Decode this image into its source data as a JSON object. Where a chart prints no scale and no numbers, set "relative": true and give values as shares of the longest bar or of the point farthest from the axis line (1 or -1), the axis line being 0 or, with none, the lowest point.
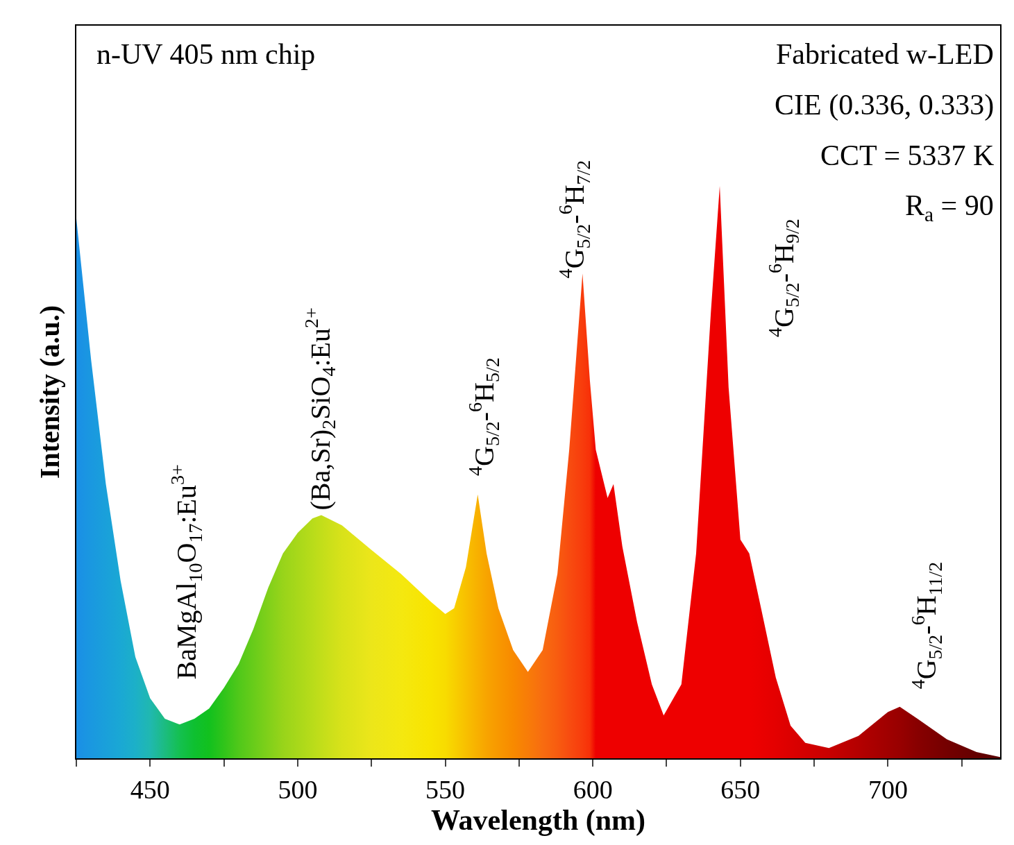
{
  "chart_data": {
    "type": "area",
    "relative": true,
    "xlabel": "Wavelength (nm)",
    "ylabel": "Intensity (a.u.)",
    "xlim": [
      425,
      738
    ],
    "xticks": [
      {
        "value": 425,
        "label": null
      },
      450,
      {
        "value": 475,
        "label": null
      },
      500,
      {
        "value": 525,
        "label": null
      },
      550,
      {
        "value": 575,
        "label": null
      },
      600,
      {
        "value": 625,
        "label": null
      },
      650,
      {
        "value": 675,
        "label": null
      },
      700,
      {
        "value": 725,
        "label": null
      }
    ],
    "x": [
      425,
      430,
      435,
      440,
      445,
      450,
      455,
      460,
      465,
      470,
      475,
      480,
      485,
      490,
      495,
      500,
      505,
      508,
      515,
      525,
      535,
      545,
      550,
      553,
      557,
      561,
      564,
      568,
      573,
      578,
      583,
      588,
      592,
      596.5,
      599,
      601,
      605,
      607,
      610,
      615,
      620,
      624,
      630,
      635,
      640,
      643,
      646,
      650,
      653,
      657,
      662,
      667,
      672,
      680,
      690,
      700,
      704,
      710,
      720,
      730,
      738
    ],
    "series": [
      {
        "values": [
          0.943,
          0.696,
          0.479,
          0.31,
          0.177,
          0.105,
          0.069,
          0.059,
          0.069,
          0.087,
          0.123,
          0.165,
          0.226,
          0.298,
          0.358,
          0.394,
          0.419,
          0.425,
          0.407,
          0.364,
          0.322,
          0.274,
          0.252,
          0.262,
          0.334,
          0.461,
          0.358,
          0.262,
          0.189,
          0.151,
          0.189,
          0.322,
          0.539,
          0.847,
          0.66,
          0.539,
          0.455,
          0.479,
          0.37,
          0.238,
          0.129,
          0.075,
          0.129,
          0.358,
          0.78,
          1.0,
          0.648,
          0.382,
          0.358,
          0.262,
          0.141,
          0.057,
          0.027,
          0.018,
          0.039,
          0.081,
          0.09,
          0.069,
          0.033,
          0.011,
          0.002
        ],
        "colors": [
          "#1a8fe6",
          "#1a98e0",
          "#1aa0da",
          "#1aa8d4",
          "#1cb0c8",
          "#20b8b0",
          "#1cbc80",
          "#14c050",
          "#0ec030",
          "#12c11e",
          "#30c41a",
          "#50c81a",
          "#68cc1a",
          "#80d01a",
          "#98d41a",
          "#a8d81a",
          "#b8dc1a",
          "#c2de1a",
          "#d8e21a",
          "#ece61a",
          "#f4e810",
          "#f8e400",
          "#f8dc00",
          "#f8d000",
          "#f8c000",
          "#f8b000",
          "#f8a400",
          "#f89800",
          "#f88a00",
          "#f87c08",
          "#f86c10",
          "#f85c10",
          "#f84c10",
          "#f83c0c",
          "#f83008",
          "#ee0000",
          "#ee0000",
          "#ee0000",
          "#ee0000",
          "#ee0000",
          "#ee0000",
          "#ee0000",
          "#ee0000",
          "#ee0000",
          "#ee0000",
          "#ee0000",
          "#ee0000",
          "#ee0000",
          "#ee0000",
          "#ea0000",
          "#e40000",
          "#dc0000",
          "#d40000",
          "#c80000",
          "#b40000",
          "#a00000",
          "#980000",
          "#880000",
          "#740000",
          "#640000",
          "#580000"
        ]
      }
    ],
    "annotations": [
      "n-UV 405 nm chip",
      "Fabricated w-LED",
      "CIE (0.336, 0.333)",
      "CCT = 5337 K",
      "R$_{a}$ = 90",
      "BaMgAl$_{10}$O$_{17}$:Eu$^{3+}$",
      "(Ba,Sr)$_{2}$SiO$_{4}$:Eu$^{2+}$",
      "$^{4}$G$_{5/2}$-$^{6}$H$_{5/2}$",
      "$^{4}$G$_{5/2}$-$^{6}$H$_{7/2}$",
      "$^{4}$G$_{5/2}$-$^{6}$H$_{9/2}$",
      "$^{4}$G$_{5/2}$-$^{6}$H$_{11/2}$"
    ]
  }
}
